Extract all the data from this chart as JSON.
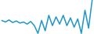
{
  "values": [
    3.5,
    3.2,
    3.6,
    3.1,
    3.4,
    3.0,
    3.2,
    2.8,
    3.3,
    2.5,
    1.0,
    3.5,
    1.5,
    4.5,
    2.5,
    4.2,
    2.8,
    4.5,
    2.5,
    4.0,
    2.2,
    3.8,
    1.0,
    5.5,
    2.0,
    7.5
  ],
  "line_color": "#2196c8",
  "linewidth": 1.1,
  "background_color": "#ffffff"
}
